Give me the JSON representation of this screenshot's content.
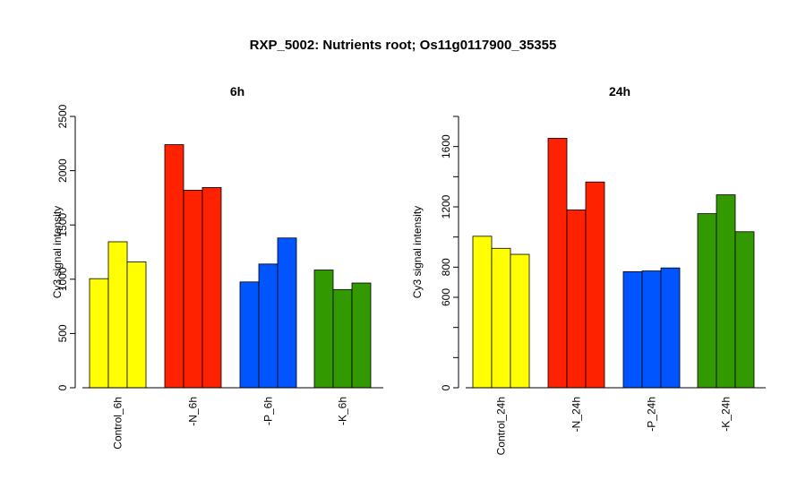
{
  "title": "RXP_5002: Nutrients root; Os11g0117900_35355",
  "colors": {
    "control": "#ffff00",
    "minus_n": "#ff2200",
    "minus_p": "#0055ff",
    "minus_k": "#339900"
  },
  "chart_data": [
    {
      "type": "bar",
      "title": "6h",
      "ylabel": "Cy3 signal intensity",
      "ylim": [
        0,
        2500
      ],
      "yticks": [
        0,
        500,
        1000,
        1500,
        2000,
        2500
      ],
      "ytick_labels": [
        "0",
        "500",
        "1000",
        "1500",
        "2000",
        "2500"
      ],
      "categories": [
        "Control_6h",
        "-N_6h",
        "-P_6h",
        "-K_6h"
      ],
      "groups": [
        {
          "category": "Control_6h",
          "color": "#ffff00",
          "values": [
            1005,
            1345,
            1160
          ]
        },
        {
          "category": "-N_6h",
          "color": "#ff2200",
          "values": [
            2240,
            1820,
            1845
          ]
        },
        {
          "category": "-P_6h",
          "color": "#0055ff",
          "values": [
            975,
            1140,
            1380
          ]
        },
        {
          "category": "-K_6h",
          "color": "#339900",
          "values": [
            1085,
            905,
            965
          ]
        }
      ]
    },
    {
      "type": "bar",
      "title": "24h",
      "ylabel": "Cy3 signal intensity",
      "ylim": [
        0,
        1800
      ],
      "yticks": [
        0,
        600,
        800,
        1200,
        1600
      ],
      "ytick_labels": [
        "0",
        "600",
        "800",
        "1200",
        "1600"
      ],
      "categories": [
        "Control_24h",
        "-N_24h",
        "-P_24h",
        "-K_24h"
      ],
      "groups": [
        {
          "category": "Control_24h",
          "color": "#ffff00",
          "values": [
            1005,
            925,
            885
          ]
        },
        {
          "category": "-N_24h",
          "color": "#ff2200",
          "values": [
            1655,
            1180,
            1365
          ]
        },
        {
          "category": "-P_24h",
          "color": "#0055ff",
          "values": [
            770,
            775,
            795
          ]
        },
        {
          "category": "-K_24h",
          "color": "#339900",
          "values": [
            1155,
            1280,
            1035
          ]
        }
      ]
    }
  ]
}
